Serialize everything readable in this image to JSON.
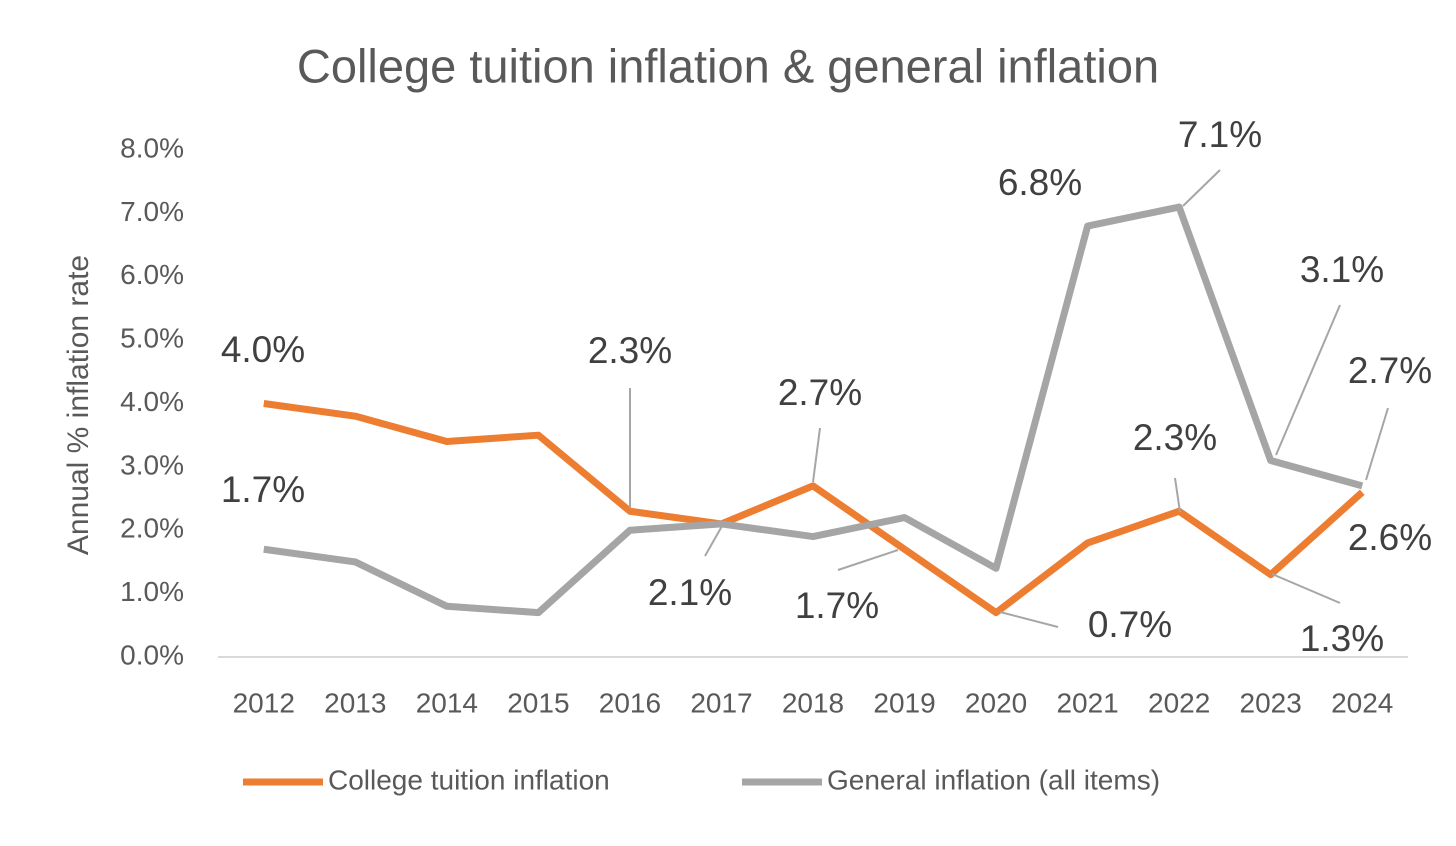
{
  "chart_data": {
    "type": "line",
    "title": "College tuition inflation & general inflation",
    "y_label": "Annual % inflation rate",
    "categories": [
      "2012",
      "2013",
      "2014",
      "2015",
      "2016",
      "2017",
      "2018",
      "2019",
      "2020",
      "2021",
      "2022",
      "2023",
      "2024"
    ],
    "series": [
      {
        "name": "College tuition inflation",
        "color": "#ed7d31",
        "values": [
          4.0,
          3.8,
          3.4,
          3.5,
          2.3,
          2.1,
          2.7,
          1.7,
          0.7,
          1.8,
          2.3,
          1.3,
          2.6
        ],
        "value_labels": [
          "4.0%",
          null,
          null,
          null,
          "2.3%",
          "2.1%",
          "2.7%",
          "1.7%",
          "0.7%",
          null,
          "2.3%",
          "1.3%",
          "2.6%"
        ]
      },
      {
        "name": "General inflation (all items)",
        "color": "#a5a5a5",
        "values": [
          1.7,
          1.5,
          0.8,
          0.7,
          2.0,
          2.1,
          1.9,
          2.2,
          1.4,
          6.8,
          7.1,
          3.1,
          2.7
        ],
        "value_labels": [
          "1.7%",
          null,
          null,
          null,
          null,
          null,
          null,
          null,
          null,
          "6.8%",
          "7.1%",
          "3.1%",
          "2.7%"
        ]
      }
    ],
    "ylim": [
      0,
      8
    ],
    "yticks": [
      {
        "value": 0,
        "label": "0.0%"
      },
      {
        "value": 1,
        "label": "1.0%"
      },
      {
        "value": 2,
        "label": "2.0%"
      },
      {
        "value": 3,
        "label": "3.0%"
      },
      {
        "value": 4,
        "label": "4.0%"
      },
      {
        "value": 5,
        "label": "5.0%"
      },
      {
        "value": 6,
        "label": "6.0%"
      },
      {
        "value": 7,
        "label": "7.0%"
      },
      {
        "value": 8,
        "label": "8.0%"
      }
    ],
    "grid": false,
    "legend": "bottom"
  }
}
